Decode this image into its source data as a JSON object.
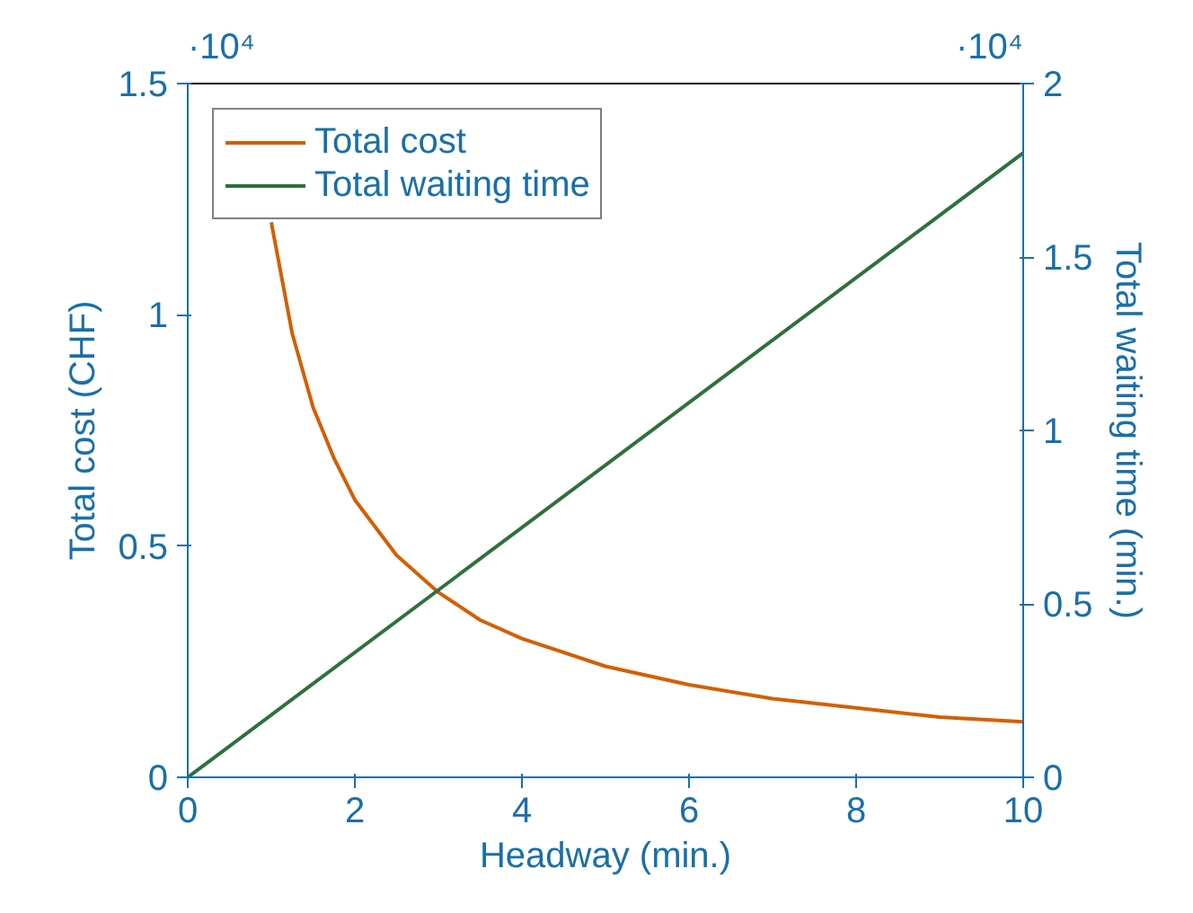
{
  "chart_data": {
    "type": "line",
    "xlabel": "Headway (min.)",
    "ylabel": "Total cost (CHF)",
    "y2label": "Total waiting time (min.)",
    "xlim": [
      0,
      10
    ],
    "xticks": [
      0,
      2,
      4,
      6,
      8,
      10
    ],
    "ylim": [
      0,
      1.5
    ],
    "yticks": [
      0,
      0.5,
      1,
      1.5
    ],
    "y2lim": [
      0,
      2
    ],
    "y2ticks": [
      0,
      0.5,
      1,
      1.5,
      2
    ],
    "annotations": [
      "·10⁴",
      "·10⁴"
    ],
    "legend": "top left",
    "grid": false,
    "marker": "none",
    "line_style": "solid",
    "series": [
      {
        "name": "Total cost",
        "color": "#d45f00",
        "x": [
          1,
          1.25,
          1.5,
          1.75,
          2,
          2.5,
          3,
          3.5,
          4,
          5,
          6,
          7,
          8,
          9,
          10
        ],
        "values": [
          1.2,
          0.96,
          0.8,
          0.69,
          0.6,
          0.48,
          0.4,
          0.34,
          0.3,
          0.24,
          0.2,
          0.17,
          0.15,
          0.13,
          0.12
        ]
      },
      {
        "name": "Total waiting time",
        "color": "#2e7040",
        "axis": "y2",
        "x": [
          0,
          10
        ],
        "values": [
          0,
          1.8
        ]
      }
    ]
  }
}
